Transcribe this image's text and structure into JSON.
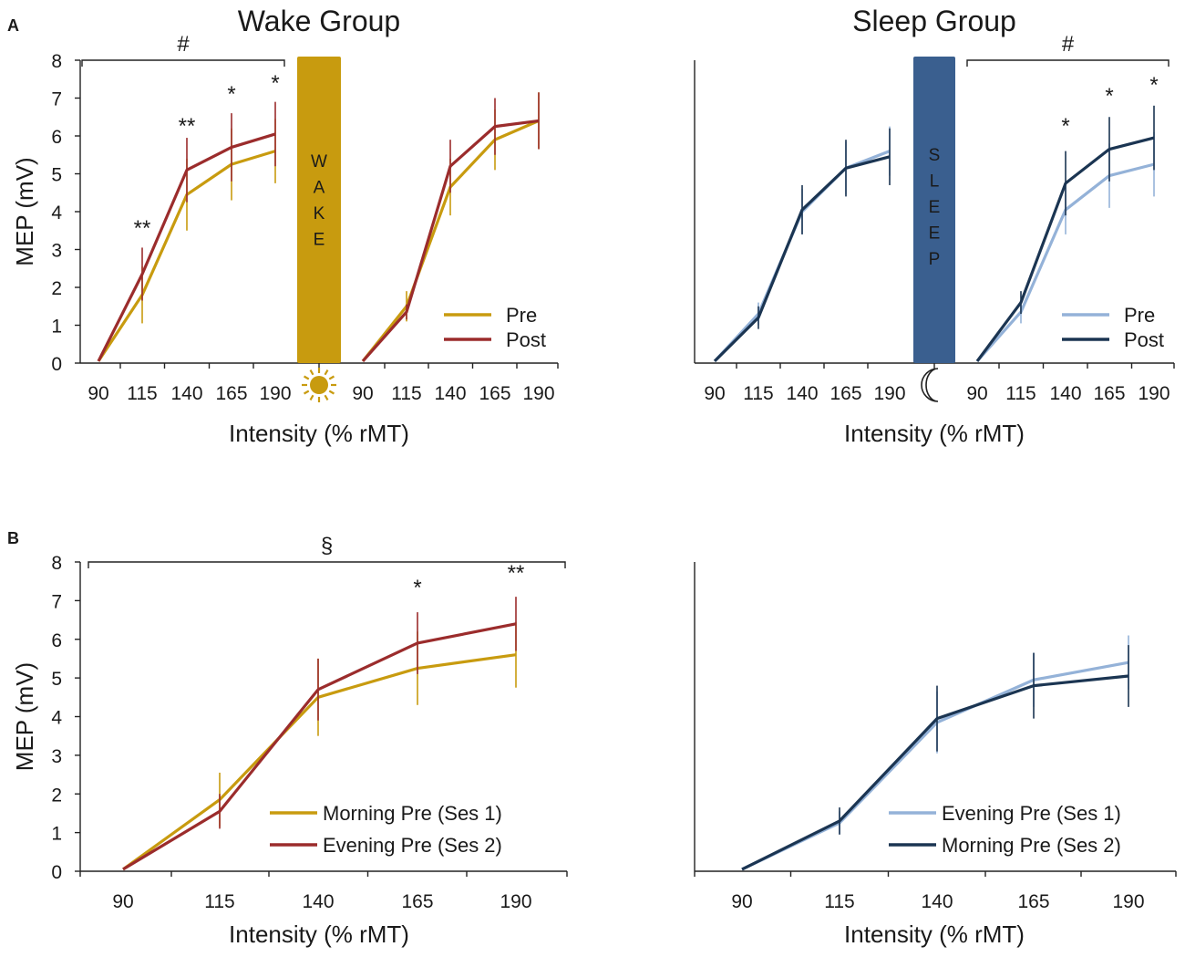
{
  "panels": {
    "a": "A",
    "b": "B"
  },
  "titles": {
    "wake": "Wake Group",
    "sleep": "Sleep Group"
  },
  "bars": {
    "wake": [
      "W",
      "A",
      "K",
      "E"
    ],
    "sleep": [
      "S",
      "L",
      "E",
      "E",
      "P"
    ]
  },
  "icons": {
    "wake": "sun-icon",
    "sleep": "moon-icon"
  },
  "colors": {
    "wake_pre": "#C89B0F",
    "wake_post": "#9B2C2C",
    "sleep_pre": "#94B2D8",
    "sleep_post": "#1B3552",
    "wake_bar": "#C89B0F",
    "sleep_bar": "#3A5F8F"
  },
  "chart_data": [
    {
      "id": "A-left",
      "type": "line",
      "title": "Wake Group",
      "ylabel": "MEP (mV)",
      "xlabel": "Intensity (% rMT)",
      "ylim": [
        0,
        8
      ],
      "yticks": [
        "0",
        "1",
        "2",
        "3",
        "4",
        "5",
        "6",
        "7",
        "8"
      ],
      "segment_categories": [
        [
          "90",
          "115",
          "140",
          "165",
          "190"
        ],
        [
          "90",
          "115",
          "140",
          "165",
          "190"
        ]
      ],
      "interval_label": "WAKE",
      "series": [
        {
          "name": "Pre",
          "seg1": [
            0.05,
            1.8,
            4.45,
            5.25,
            5.6
          ],
          "err1": [
            0,
            0.75,
            0.95,
            0.95,
            0.85
          ],
          "seg2": [
            0.05,
            1.5,
            4.65,
            5.9,
            6.4
          ],
          "err2": [
            0,
            0.4,
            0.75,
            0.8,
            0.75
          ]
        },
        {
          "name": "Post",
          "seg1": [
            0.05,
            2.35,
            5.1,
            5.7,
            6.05
          ],
          "err1": [
            0,
            0.7,
            0.85,
            0.9,
            0.85
          ],
          "seg2": [
            0.05,
            1.35,
            5.2,
            6.25,
            6.4
          ],
          "err2": [
            0,
            0.2,
            0.7,
            0.75,
            0.75
          ]
        }
      ],
      "significance": [
        "",
        "**",
        "**",
        "*",
        "*"
      ],
      "bracket_label": "#",
      "legend": [
        "Pre",
        "Post"
      ]
    },
    {
      "id": "A-right",
      "type": "line",
      "title": "Sleep Group",
      "ylabel": "",
      "xlabel": "Intensity (% rMT)",
      "ylim": [
        0,
        8
      ],
      "segment_categories": [
        [
          "90",
          "115",
          "140",
          "165",
          "190"
        ],
        [
          "90",
          "115",
          "140",
          "165",
          "190"
        ]
      ],
      "interval_label": "SLEEP",
      "series": [
        {
          "name": "Pre",
          "seg1": [
            0.05,
            1.3,
            4.0,
            5.15,
            5.6
          ],
          "err1": [
            0,
            0.3,
            0.6,
            0.7,
            0.65
          ],
          "seg2": [
            0.05,
            1.35,
            4.05,
            4.95,
            5.25
          ],
          "err2": [
            0,
            0.3,
            0.65,
            0.85,
            0.85
          ]
        },
        {
          "name": "Post",
          "seg1": [
            0.05,
            1.2,
            4.05,
            5.15,
            5.45
          ],
          "err1": [
            0,
            0.3,
            0.65,
            0.75,
            0.75
          ],
          "seg2": [
            0.05,
            1.6,
            4.75,
            5.65,
            5.95
          ],
          "err2": [
            0,
            0.3,
            0.85,
            0.85,
            0.85
          ]
        }
      ],
      "significance": [
        "",
        "",
        "*",
        "*",
        "*"
      ],
      "bracket_label": "#",
      "legend": [
        "Pre",
        "Post"
      ]
    },
    {
      "id": "B-left",
      "type": "line",
      "title": "",
      "ylabel": "MEP (mV)",
      "xlabel": "Intensity (% rMT)",
      "ylim": [
        0,
        8
      ],
      "yticks": [
        "0",
        "1",
        "2",
        "3",
        "4",
        "5",
        "6",
        "7",
        "8"
      ],
      "categories": [
        "90",
        "115",
        "140",
        "165",
        "190"
      ],
      "series": [
        {
          "name": "Morning Pre (Ses 1)",
          "values": [
            0.05,
            1.85,
            4.5,
            5.25,
            5.6
          ],
          "errors": [
            0,
            0.7,
            1.0,
            0.95,
            0.85
          ]
        },
        {
          "name": "Evening Pre (Ses 2)",
          "values": [
            0.05,
            1.55,
            4.7,
            5.9,
            6.4
          ],
          "errors": [
            0,
            0.45,
            0.8,
            0.8,
            0.7
          ]
        }
      ],
      "significance": [
        "",
        "",
        "",
        "*",
        "**"
      ],
      "bracket_label": "§",
      "legend": [
        "Morning Pre (Ses 1)",
        "Evening Pre (Ses 2)"
      ]
    },
    {
      "id": "B-right",
      "type": "line",
      "title": "",
      "ylabel": "",
      "xlabel": "Intensity (% rMT)",
      "ylim": [
        0,
        8
      ],
      "categories": [
        "90",
        "115",
        "140",
        "165",
        "190"
      ],
      "series": [
        {
          "name": "Evening Pre (Ses 1)",
          "values": [
            0.05,
            1.25,
            3.85,
            4.95,
            5.4
          ],
          "errors": [
            0,
            0.3,
            0.8,
            0.7,
            0.7
          ]
        },
        {
          "name": "Morning Pre (Ses 2)",
          "values": [
            0.05,
            1.3,
            3.95,
            4.8,
            5.05
          ],
          "errors": [
            0,
            0.35,
            0.85,
            0.85,
            0.8
          ]
        }
      ],
      "significance": [
        "",
        "",
        "",
        "",
        ""
      ],
      "bracket_label": "",
      "legend": [
        "Evening Pre (Ses 1)",
        "Morning Pre (Ses 2)"
      ]
    }
  ]
}
